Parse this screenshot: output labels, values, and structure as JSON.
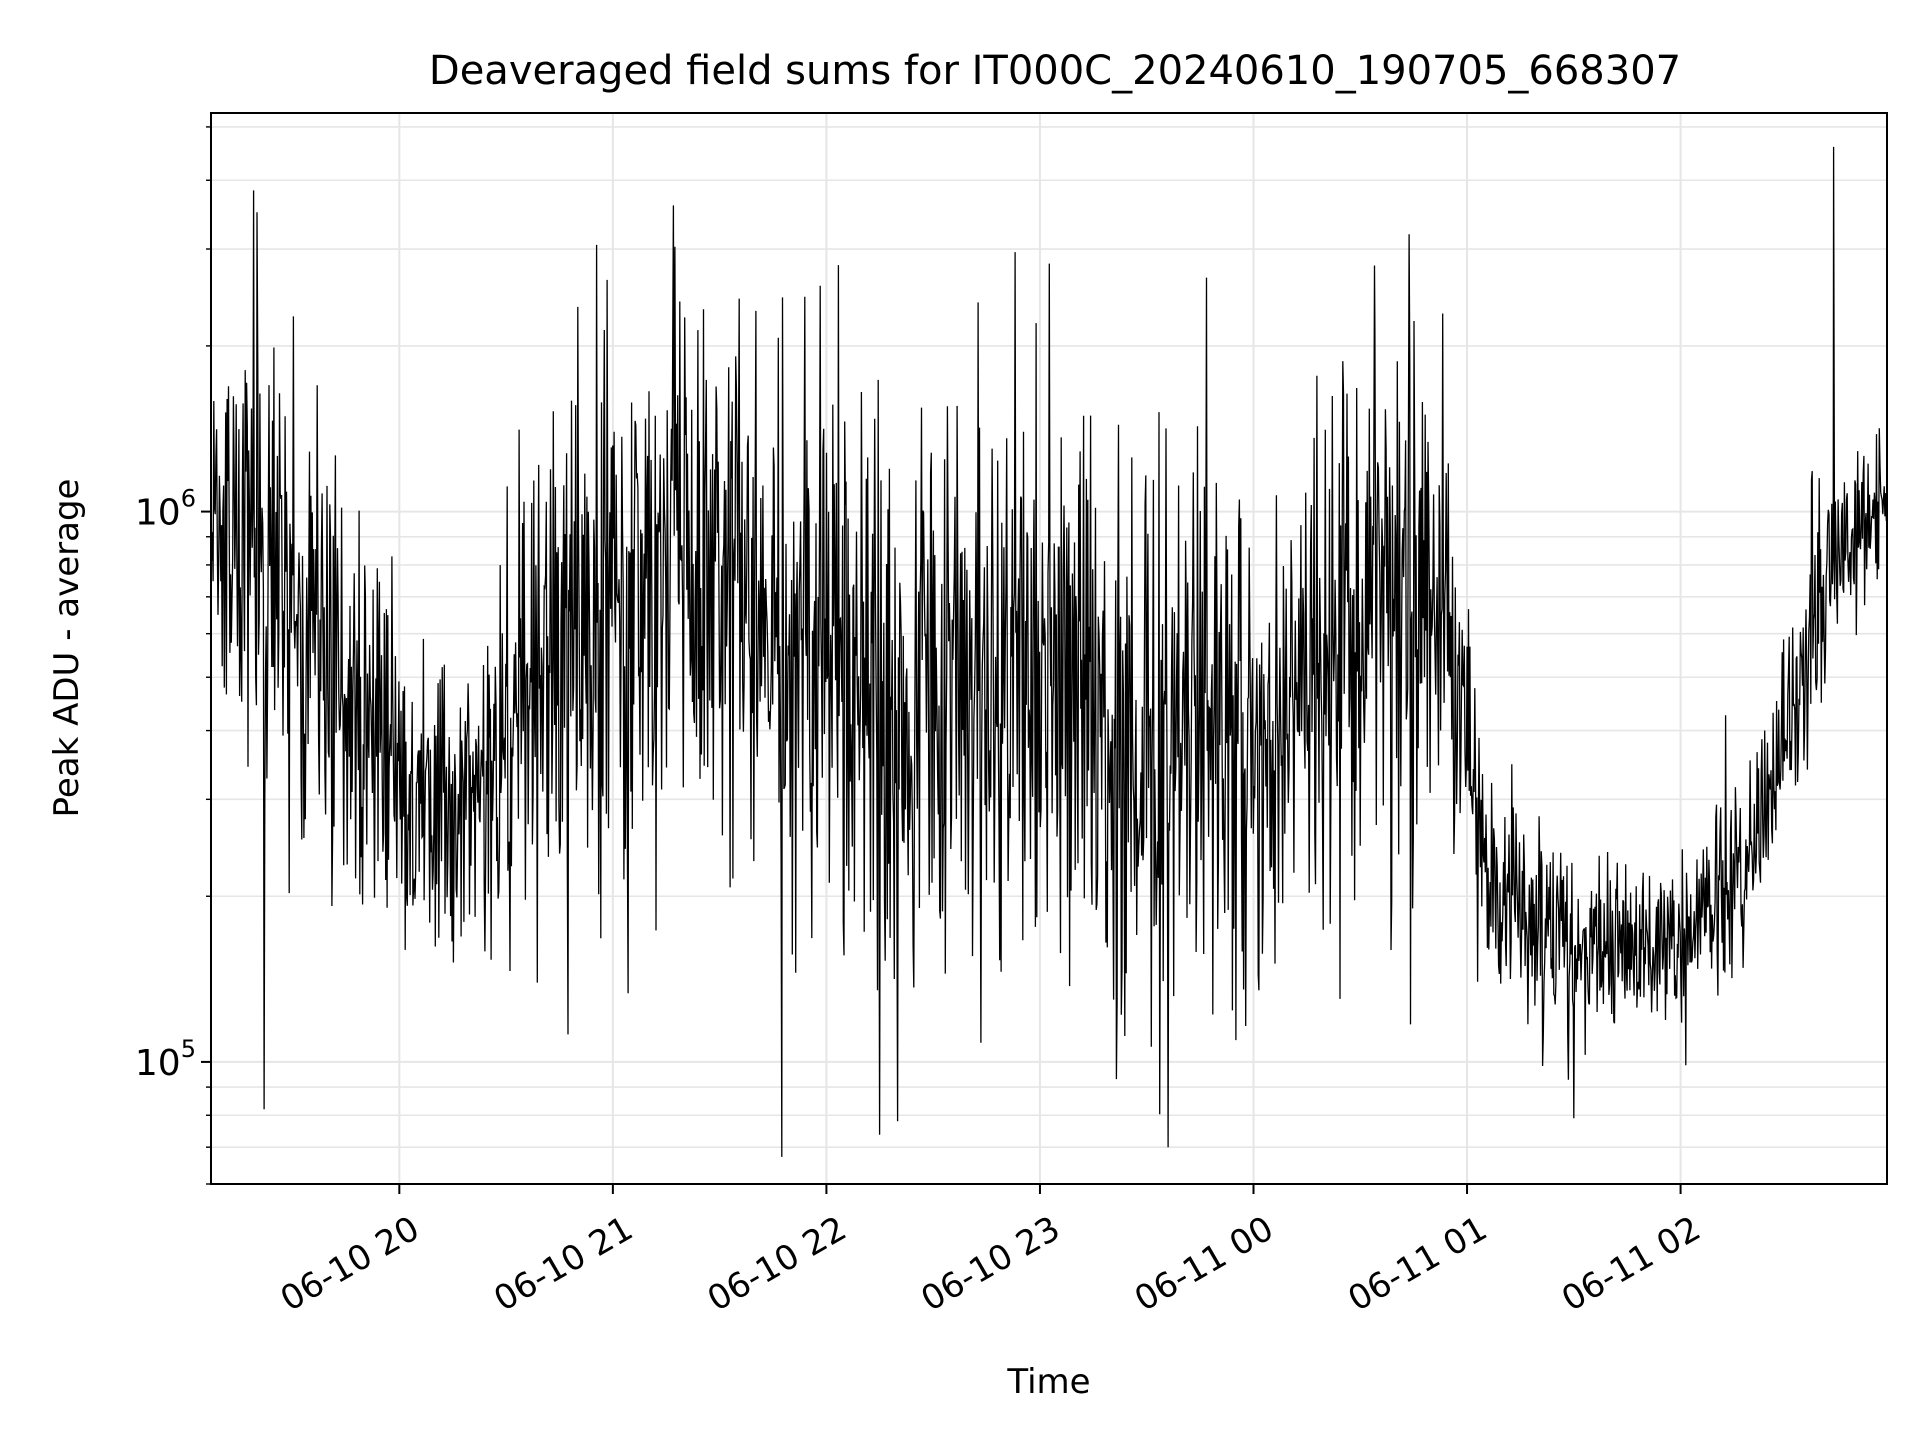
{
  "chart_data": {
    "type": "line",
    "title": "Deaveraged field sums for IT000C_20240610_190705_668307",
    "xlabel": "Time",
    "ylabel": "Peak ADU - average",
    "yscale": "log",
    "ylim": [
      60000,
      5300000
    ],
    "xlim": [
      "2024-06-10T19:07:05",
      "2024-06-11T02:58:00"
    ],
    "grid": true,
    "line_color": "#000000",
    "x_ticks": [
      {
        "label": "06-10 20",
        "t": "2024-06-10T20:00:00"
      },
      {
        "label": "06-10 21",
        "t": "2024-06-10T21:00:00"
      },
      {
        "label": "06-10 22",
        "t": "2024-06-10T22:00:00"
      },
      {
        "label": "06-10 23",
        "t": "2024-06-10T23:00:00"
      },
      {
        "label": "06-11 00",
        "t": "2024-06-11T00:00:00"
      },
      {
        "label": "06-11 01",
        "t": "2024-06-11T01:00:00"
      },
      {
        "label": "06-11 02",
        "t": "2024-06-11T02:00:00"
      }
    ],
    "y_ticks": [
      {
        "base": "10",
        "exp": "5",
        "value": 100000
      },
      {
        "base": "10",
        "exp": "6",
        "value": 1000000
      }
    ],
    "series_profile": {
      "x": [
        "2024-06-10T19:07:05",
        "2024-06-10T19:20:00",
        "2024-06-10T19:35:00",
        "2024-06-10T19:50:00",
        "2024-06-10T20:05:00",
        "2024-06-10T20:20:00",
        "2024-06-10T20:35:00",
        "2024-06-10T20:50:00",
        "2024-06-10T21:05:00",
        "2024-06-10T21:20:00",
        "2024-06-10T21:35:00",
        "2024-06-10T21:50:00",
        "2024-06-10T22:05:00",
        "2024-06-10T22:20:00",
        "2024-06-10T22:35:00",
        "2024-06-10T22:50:00",
        "2024-06-10T23:05:00",
        "2024-06-10T23:20:00",
        "2024-06-10T23:35:00",
        "2024-06-10T23:50:00",
        "2024-06-11T00:05:00",
        "2024-06-11T00:20:00",
        "2024-06-11T00:35:00",
        "2024-06-11T00:50:00",
        "2024-06-11T01:05:00",
        "2024-06-11T01:20:00",
        "2024-06-11T01:35:00",
        "2024-06-11T01:50:00",
        "2024-06-11T02:05:00",
        "2024-06-11T02:20:00",
        "2024-06-11T02:30:00",
        "2024-06-11T02:40:00",
        "2024-06-11T02:50:00",
        "2024-06-11T02:58:00"
      ],
      "center": [
        950000,
        800000,
        600000,
        450000,
        300000,
        280000,
        450000,
        600000,
        700000,
        800000,
        800000,
        600000,
        600000,
        350000,
        450000,
        600000,
        500000,
        400000,
        350000,
        500000,
        300000,
        600000,
        800000,
        700000,
        220000,
        170000,
        160000,
        165000,
        180000,
        230000,
        400000,
        700000,
        1000000,
        1000000
      ],
      "spread": [
        1.7,
        1.9,
        2.1,
        1.8,
        1.5,
        1.5,
        2.0,
        2.3,
        2.3,
        2.2,
        2.2,
        2.4,
        2.5,
        2.2,
        2.3,
        2.4,
        2.2,
        2.3,
        2.4,
        2.2,
        1.7,
        2.2,
        2.2,
        2.0,
        1.35,
        1.35,
        1.3,
        1.3,
        1.3,
        1.35,
        1.4,
        1.4,
        1.25,
        1.2
      ],
      "samples": 2400
    },
    "notable_extremes": [
      {
        "t": "2024-06-10T19:20:00",
        "y": 3500000
      },
      {
        "t": "2024-06-10T19:22:00",
        "y": 82000
      },
      {
        "t": "2024-06-10T21:17:00",
        "y": 3600000
      },
      {
        "t": "2024-06-10T22:20:00",
        "y": 78000
      },
      {
        "t": "2024-06-10T23:36:00",
        "y": 70000
      },
      {
        "t": "2024-06-11T00:34:00",
        "y": 2800000
      },
      {
        "t": "2024-06-11T01:30:00",
        "y": 79000
      },
      {
        "t": "2024-06-11T02:43:00",
        "y": 4600000
      }
    ]
  }
}
